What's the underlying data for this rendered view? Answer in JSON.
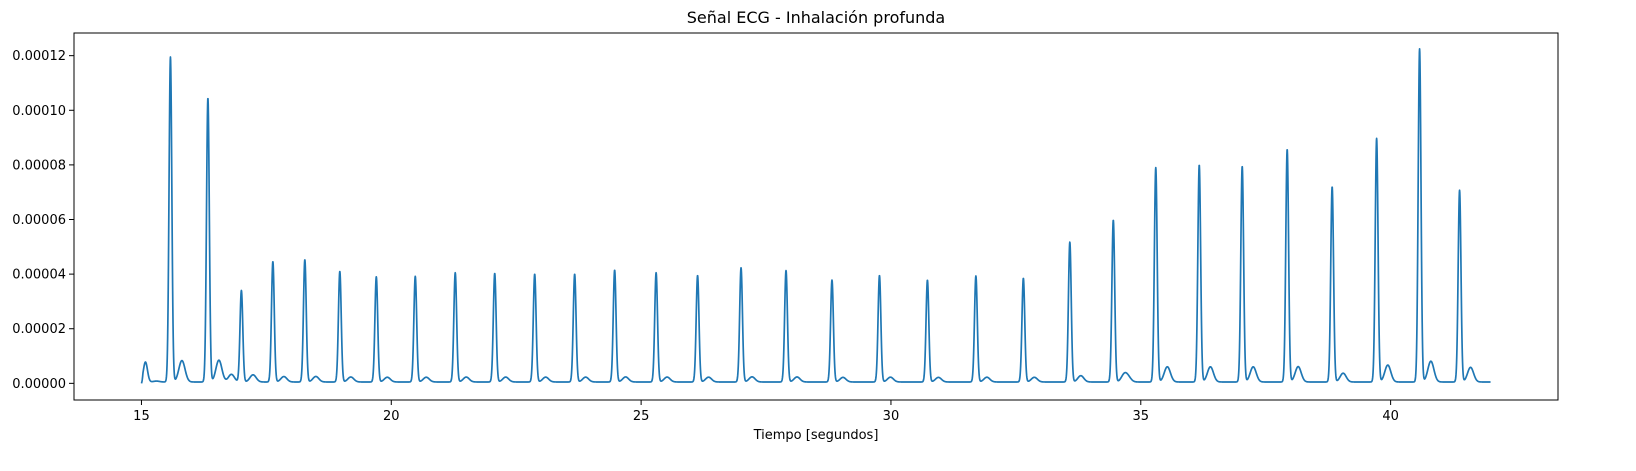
{
  "chart_data": {
    "type": "line",
    "title": "Señal ECG - Inhalación profunda",
    "xlabel": "Tiempo [segundos]",
    "ylabel": "",
    "xlim": [
      13.65,
      43.35
    ],
    "ylim": [
      -6.1e-06,
      0.0001283
    ],
    "grid": false,
    "x_ticks": [
      15,
      20,
      25,
      30,
      35,
      40
    ],
    "x_tick_labels": [
      "15",
      "20",
      "25",
      "30",
      "35",
      "40"
    ],
    "y_ticks": [
      0,
      2e-05,
      4e-05,
      6e-05,
      8e-05,
      0.0001,
      0.00012
    ],
    "y_tick_labels": [
      "0.00000",
      "0.00002",
      "0.00004",
      "0.00006",
      "0.00008",
      "0.00010",
      "0.00012"
    ],
    "series": [
      {
        "color": "#1f77b4",
        "x_start": 15.0,
        "x_end": 42.0,
        "baseline": 5e-07,
        "peaks": [
          {
            "t": 15.08,
            "v": 7.3e-06,
            "w": 0.04
          },
          {
            "t": 15.58,
            "v": 0.000119,
            "w": 0.028
          },
          {
            "t": 16.33,
            "v": 0.000104,
            "w": 0.028
          },
          {
            "t": 17.0,
            "v": 3.35e-05,
            "w": 0.028
          },
          {
            "t": 17.63,
            "v": 4.41e-05,
            "w": 0.028
          },
          {
            "t": 18.27,
            "v": 4.48e-05,
            "w": 0.028
          },
          {
            "t": 18.97,
            "v": 4.05e-05,
            "w": 0.028
          },
          {
            "t": 19.7,
            "v": 3.85e-05,
            "w": 0.028
          },
          {
            "t": 20.48,
            "v": 3.87e-05,
            "w": 0.028
          },
          {
            "t": 21.28,
            "v": 4e-05,
            "w": 0.028
          },
          {
            "t": 22.07,
            "v": 3.98e-05,
            "w": 0.028
          },
          {
            "t": 22.87,
            "v": 3.95e-05,
            "w": 0.028
          },
          {
            "t": 23.67,
            "v": 3.95e-05,
            "w": 0.028
          },
          {
            "t": 24.47,
            "v": 4.1e-05,
            "w": 0.028
          },
          {
            "t": 25.3,
            "v": 4e-05,
            "w": 0.028
          },
          {
            "t": 26.13,
            "v": 3.9e-05,
            "w": 0.028
          },
          {
            "t": 27.0,
            "v": 4.18e-05,
            "w": 0.028
          },
          {
            "t": 27.9,
            "v": 4.08e-05,
            "w": 0.028
          },
          {
            "t": 28.82,
            "v": 3.73e-05,
            "w": 0.028
          },
          {
            "t": 29.77,
            "v": 3.9e-05,
            "w": 0.028
          },
          {
            "t": 30.73,
            "v": 3.73e-05,
            "w": 0.028
          },
          {
            "t": 31.7,
            "v": 3.88e-05,
            "w": 0.028
          },
          {
            "t": 32.65,
            "v": 3.8e-05,
            "w": 0.028
          },
          {
            "t": 33.58,
            "v": 5.12e-05,
            "w": 0.028
          },
          {
            "t": 34.45,
            "v": 5.93e-05,
            "w": 0.028
          },
          {
            "t": 35.3,
            "v": 7.85e-05,
            "w": 0.028
          },
          {
            "t": 36.17,
            "v": 7.95e-05,
            "w": 0.028
          },
          {
            "t": 37.03,
            "v": 7.9e-05,
            "w": 0.028
          },
          {
            "t": 37.93,
            "v": 8.52e-05,
            "w": 0.028
          },
          {
            "t": 38.83,
            "v": 7.15e-05,
            "w": 0.028
          },
          {
            "t": 39.72,
            "v": 8.92e-05,
            "w": 0.028
          },
          {
            "t": 40.58,
            "v": 0.000122,
            "w": 0.028
          },
          {
            "t": 41.38,
            "v": 7.02e-05,
            "w": 0.028
          }
        ],
        "bumps": [
          {
            "t": 15.83,
            "v": 2.7e-06,
            "w": 0.06
          },
          {
            "t": 16.55,
            "v": 3.3e-06,
            "w": 0.06
          },
          {
            "t": 16.8,
            "v": 2.8e-06,
            "w": 0.06
          },
          {
            "t": 17.25,
            "v": 1.2e-06,
            "w": 0.06
          },
          {
            "t": 34.75,
            "v": 1.5e-06,
            "w": 0.06
          },
          {
            "t": 35.55,
            "v": 2.2e-06,
            "w": 0.06
          },
          {
            "t": 36.4,
            "v": 2e-06,
            "w": 0.06
          },
          {
            "t": 37.25,
            "v": 2e-06,
            "w": 0.06
          },
          {
            "t": 38.15,
            "v": 1.8e-06,
            "w": 0.06
          },
          {
            "t": 39.95,
            "v": 2.2e-06,
            "w": 0.06
          },
          {
            "t": 40.82,
            "v": 2.2e-06,
            "w": 0.06
          },
          {
            "t": 41.6,
            "v": 2.2e-06,
            "w": 0.06
          }
        ]
      }
    ]
  }
}
